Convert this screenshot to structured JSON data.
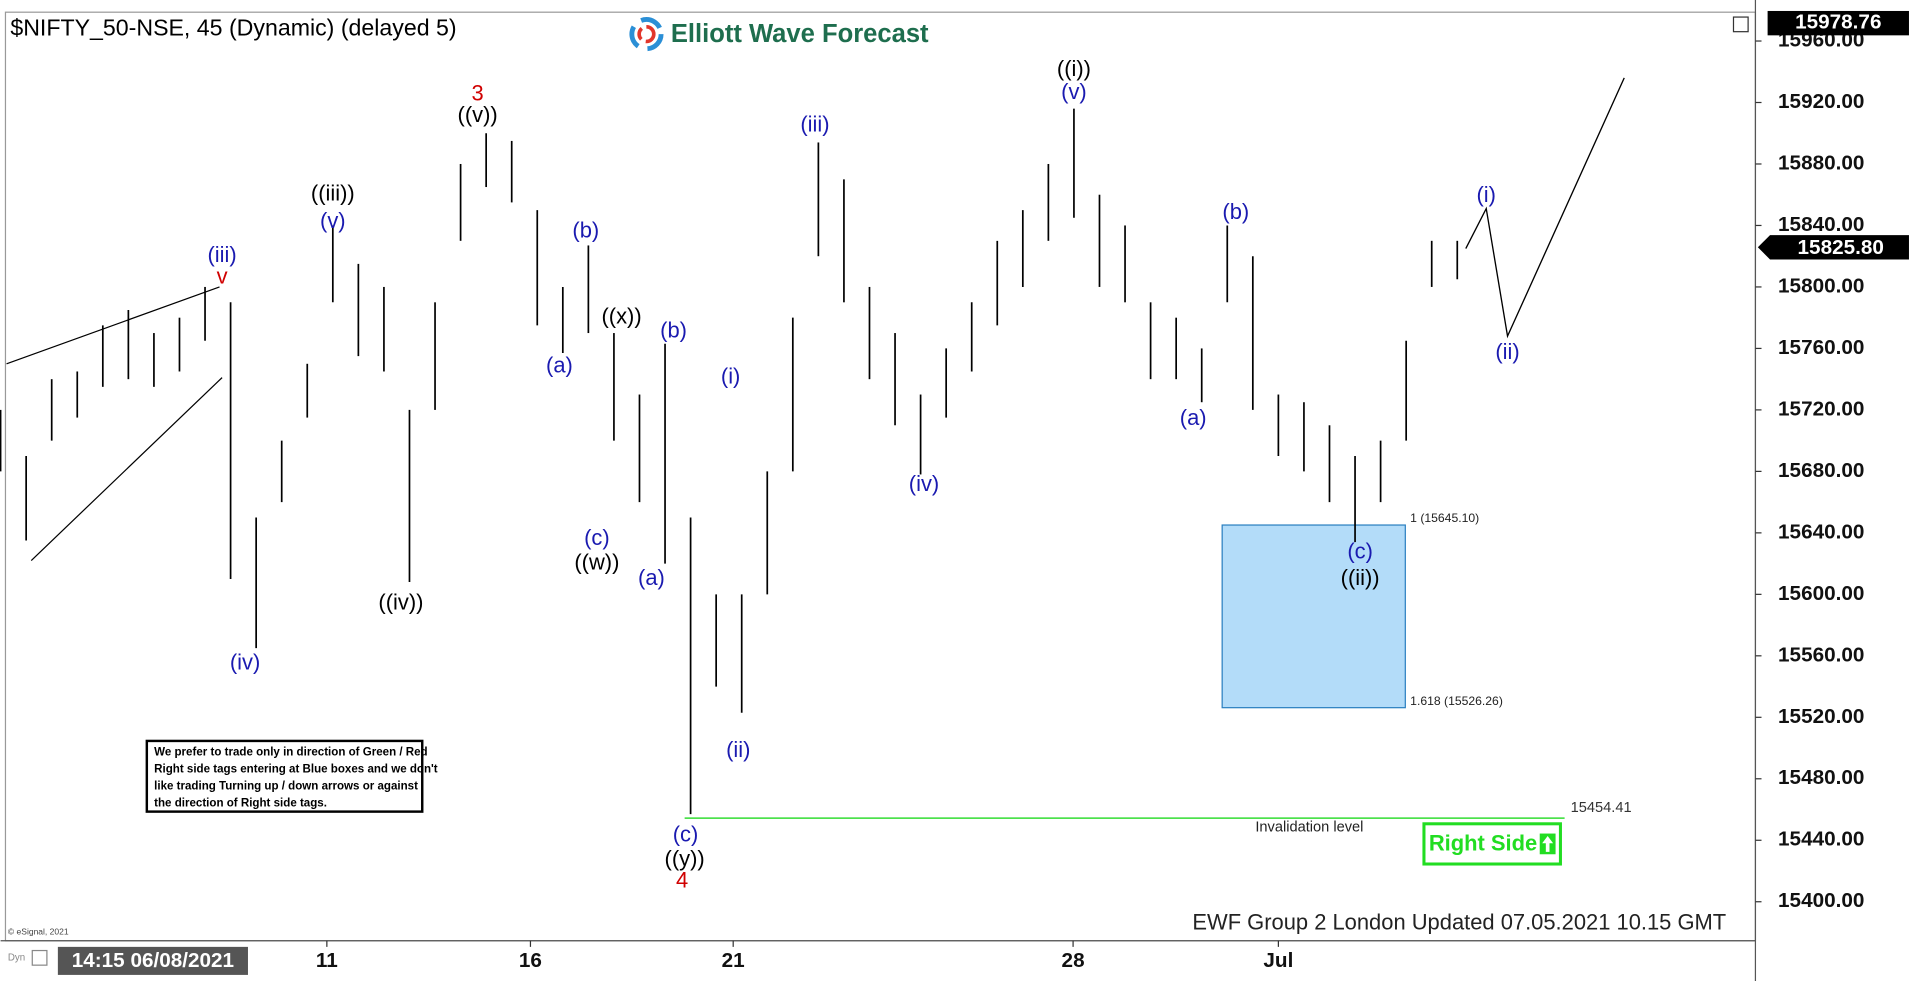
{
  "chart_data": {
    "type": "ohlc",
    "title": "$NIFTY_50-NSE, 45 (Dynamic) (delayed 5)",
    "brand": "Elliott Wave Forecast",
    "footer": "EWF Group 2 London Updated 07.05.2021 10.15 GMT",
    "copyright": "© eSignal, 2021",
    "cursor_label": "Dyn",
    "timestamp": "14:15 06/08/2021",
    "note": [
      "We prefer to trade only in direction of Green / Red",
      "Right side tags entering at Blue boxes and we don't",
      "like trading Turning up / down arrows or against",
      "the direction of Right side tags."
    ],
    "badge": "Right Side",
    "color": "#000000",
    "x": [
      0,
      3,
      6,
      9,
      12,
      15,
      18,
      21,
      24,
      27,
      30,
      33,
      36,
      39,
      42,
      45,
      48,
      51,
      54,
      57,
      60,
      63,
      66,
      69,
      72,
      75,
      78,
      81,
      84,
      87,
      90,
      93,
      96,
      99,
      102,
      105,
      108,
      111,
      114,
      117,
      120,
      123,
      126,
      129,
      132,
      135,
      138,
      141,
      144,
      147,
      150,
      153,
      156,
      159,
      162,
      165,
      168,
      171
    ],
    "high": [
      15720,
      15690,
      15740,
      15745,
      15775,
      15785,
      15770,
      15780,
      15800,
      15790,
      15650,
      15700,
      15750,
      15840,
      15815,
      15800,
      15720,
      15790,
      15880,
      15900,
      15895,
      15850,
      15800,
      15827,
      15770,
      15730,
      15763,
      15650,
      15600,
      15600,
      15680,
      15780,
      15894,
      15870,
      15800,
      15770,
      15730,
      15760,
      15790,
      15830,
      15850,
      15880,
      15916,
      15860,
      15840,
      15790,
      15780,
      15760,
      15840,
      15820,
      15730,
      15725,
      15710,
      15690,
      15700,
      15765,
      15830,
      15830
    ],
    "low": [
      15680,
      15635,
      15700,
      15715,
      15735,
      15740,
      15735,
      15745,
      15765,
      15610,
      15565,
      15660,
      15715,
      15790,
      15755,
      15745,
      15608,
      15720,
      15830,
      15865,
      15855,
      15775,
      15757,
      15770,
      15700,
      15660,
      15620,
      15457,
      15540,
      15523,
      15600,
      15680,
      15820,
      15790,
      15740,
      15710,
      15678,
      15715,
      15745,
      15775,
      15800,
      15830,
      15845,
      15800,
      15790,
      15740,
      15740,
      15725,
      15790,
      15720,
      15690,
      15680,
      15660,
      15634,
      15660,
      15700,
      15800,
      15805
    ],
    "xlim": [
      0,
      206
    ],
    "xticks": [
      {
        "value": 38.3,
        "label": "11"
      },
      {
        "value": 62.2,
        "label": "16"
      },
      {
        "value": 86,
        "label": "21"
      },
      {
        "value": 125.9,
        "label": "28"
      },
      {
        "value": 150,
        "label": "Jul"
      }
    ],
    "ylim": [
      15374.6,
      15978.76
    ],
    "yticks": [
      {
        "value": 15400,
        "label": "15400.00"
      },
      {
        "value": 15440,
        "label": "15440.00"
      },
      {
        "value": 15480,
        "label": "15480.00"
      },
      {
        "value": 15520,
        "label": "15520.00"
      },
      {
        "value": 15560,
        "label": "15560.00"
      },
      {
        "value": 15600,
        "label": "15600.00"
      },
      {
        "value": 15640,
        "label": "15640.00"
      },
      {
        "value": 15680,
        "label": "15680.00"
      },
      {
        "value": 15720,
        "label": "15720.00"
      },
      {
        "value": 15760,
        "label": "15760.00"
      },
      {
        "value": 15800,
        "label": "15800.00"
      },
      {
        "value": 15840,
        "label": "15840.00"
      },
      {
        "value": 15880,
        "label": "15880.00"
      },
      {
        "value": 15920,
        "label": "15920.00"
      },
      {
        "value": 15960,
        "label": "15960.00"
      }
    ],
    "last_price": {
      "value": 15825.8,
      "label": "15825.80"
    },
    "annotations": [
      {
        "text": "(iii)",
        "x": 26,
        "y": 15820,
        "color": "#1a1ab0"
      },
      {
        "text": "v",
        "x": 26,
        "y": 15806,
        "color": "#d00000"
      },
      {
        "text": "(iv)",
        "x": 28.7,
        "y": 15555,
        "color": "#1a1ab0"
      },
      {
        "text": "((iii))",
        "x": 39,
        "y": 15860,
        "color": "#000000"
      },
      {
        "text": "(v)",
        "x": 39,
        "y": 15842,
        "color": "#1a1ab0"
      },
      {
        "text": "((iv))",
        "x": 47,
        "y": 15594,
        "color": "#000000"
      },
      {
        "text": "3",
        "x": 56,
        "y": 15925,
        "color": "#d00000"
      },
      {
        "text": "((v))",
        "x": 56,
        "y": 15911,
        "color": "#000000"
      },
      {
        "text": "(a)",
        "x": 65.6,
        "y": 15748,
        "color": "#1a1ab0"
      },
      {
        "text": "(b)",
        "x": 68.7,
        "y": 15836,
        "color": "#1a1ab0"
      },
      {
        "text": "((x))",
        "x": 72.9,
        "y": 15780,
        "color": "#000000"
      },
      {
        "text": "(c)",
        "x": 70,
        "y": 15636,
        "color": "#1a1ab0"
      },
      {
        "text": "((w))",
        "x": 70,
        "y": 15620,
        "color": "#000000"
      },
      {
        "text": "(b)",
        "x": 79,
        "y": 15771,
        "color": "#1a1ab0"
      },
      {
        "text": "(a)",
        "x": 76.4,
        "y": 15610,
        "color": "#1a1ab0"
      },
      {
        "text": "(c)",
        "x": 80.4,
        "y": 15443,
        "color": "#1a1ab0"
      },
      {
        "text": "((y))",
        "x": 80.3,
        "y": 15427,
        "color": "#000000"
      },
      {
        "text": "4",
        "x": 80,
        "y": 15413,
        "color": "#d00000"
      },
      {
        "text": "(i)",
        "x": 85.7,
        "y": 15741,
        "color": "#1a1ab0"
      },
      {
        "text": "(ii)",
        "x": 86.6,
        "y": 15498,
        "color": "#1a1ab0"
      },
      {
        "text": "(iii)",
        "x": 95.6,
        "y": 15905,
        "color": "#1a1ab0"
      },
      {
        "text": "(iv)",
        "x": 108.4,
        "y": 15671,
        "color": "#1a1ab0"
      },
      {
        "text": "((i))",
        "x": 126,
        "y": 15941,
        "color": "#000000"
      },
      {
        "text": "(v)",
        "x": 126,
        "y": 15926,
        "color": "#1a1ab0"
      },
      {
        "text": "(a)",
        "x": 140,
        "y": 15714,
        "color": "#1a1ab0"
      },
      {
        "text": "(b)",
        "x": 145,
        "y": 15848,
        "color": "#1a1ab0"
      },
      {
        "text": "(c)",
        "x": 159.6,
        "y": 15627,
        "color": "#1a1ab0"
      },
      {
        "text": "((ii))",
        "x": 159.6,
        "y": 15610,
        "color": "#000000"
      },
      {
        "text": "(i)",
        "x": 174.4,
        "y": 15859,
        "color": "#1a1ab0"
      },
      {
        "text": "(ii)",
        "x": 176.9,
        "y": 15757,
        "color": "#1a1ab0"
      }
    ],
    "trendlines": [
      {
        "x": [
          0.7,
          25.7
        ],
        "values": [
          15750,
          15800
        ]
      },
      {
        "x": [
          3.6,
          26
        ],
        "values": [
          15622,
          15741
        ]
      }
    ],
    "projection": {
      "x": [
        172,
        174.4,
        176.9,
        190.6
      ],
      "values": [
        15825,
        15851,
        15768,
        15936
      ]
    },
    "target_box": {
      "x": [
        143.4,
        164.9
      ],
      "high": 15645.1,
      "low": 15526.26,
      "labels": [
        "1 (15645.10)",
        "1.618 (15526.26)"
      ],
      "color": "#b3dcf9"
    },
    "invalidation": {
      "value": 15454.41,
      "label": "Invalidation level",
      "x": [
        80.3,
        183.6
      ],
      "color": "#33dd33"
    }
  }
}
